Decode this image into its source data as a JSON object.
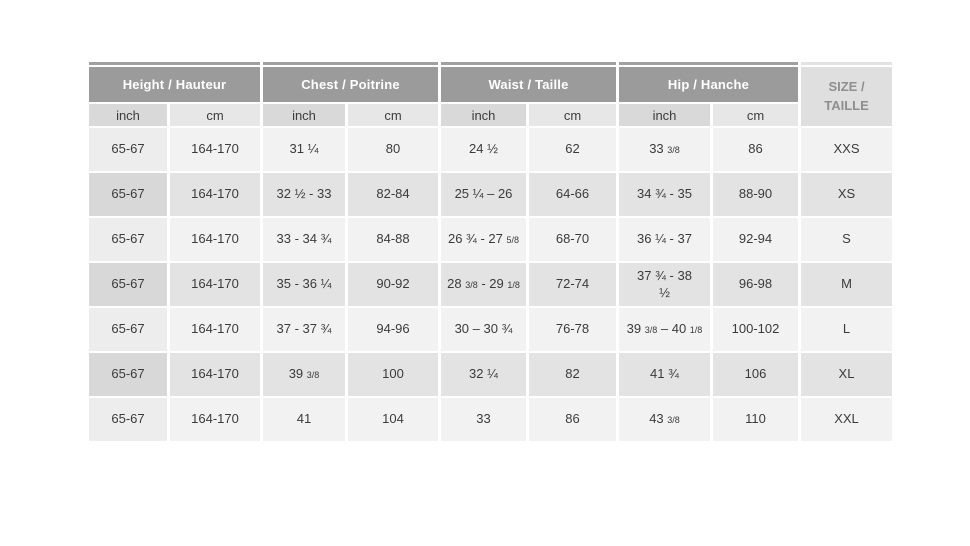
{
  "table": {
    "groups": [
      {
        "label": "Height / Hauteur",
        "sub": [
          "inch",
          "cm"
        ]
      },
      {
        "label": "Chest / Poitrine",
        "sub": [
          "inch",
          "cm"
        ]
      },
      {
        "label": "Waist / Taille",
        "sub": [
          "inch",
          "cm"
        ]
      },
      {
        "label": "Hip / Hanche",
        "sub": [
          "inch",
          "cm"
        ]
      }
    ],
    "size_header": {
      "line1": "SIZE /",
      "line2": "TAILLE"
    },
    "rows": [
      {
        "cells": [
          "65-67",
          "164-170",
          "31 ¼",
          "80",
          "24 ½",
          "62",
          "33 3/8",
          "86"
        ],
        "size": "XXS"
      },
      {
        "cells": [
          "65-67",
          "164-170",
          "32 ½ - 33",
          "82-84",
          "25 ¼ – 26",
          "64-66",
          "34 ¾ - 35",
          "88-90"
        ],
        "size": "XS"
      },
      {
        "cells": [
          "65-67",
          "164-170",
          "33 - 34 ¾",
          "84-88",
          "26 ¾ - 27 5/8",
          "68-70",
          "36 ¼ - 37",
          "92-94"
        ],
        "size": "S"
      },
      {
        "cells": [
          "65-67",
          "164-170",
          "35 - 36 ¼",
          "90-92",
          "28 3/8 - 29 1/8",
          "72-74",
          "37 ¾ - 38\n½",
          "96-98"
        ],
        "size": "M"
      },
      {
        "cells": [
          "65-67",
          "164-170",
          "37 - 37 ¾",
          "94-96",
          "30 – 30 ¾",
          "76-78",
          "39 3/8 – 40 1/8",
          "100-102"
        ],
        "size": "L"
      },
      {
        "cells": [
          "65-67",
          "164-170",
          "39 3/8",
          "100",
          "32 ¼",
          "82",
          "41 ¾",
          "106"
        ],
        "size": "XL"
      },
      {
        "cells": [
          "65-67",
          "164-170",
          "41",
          "104",
          "33",
          "86",
          "43 3/8",
          "110"
        ],
        "size": "XXL"
      }
    ],
    "colors": {
      "header_bg": "#9b9b9b",
      "header_text": "#ffffff",
      "size_header_bg": "#dfdfdf",
      "size_header_text": "#8f8f8f",
      "subheader_inch_bg": "#d9d9d9",
      "subheader_cm_bg": "#e7e7e7",
      "row_light_bg": "#f2f2f2",
      "row_light_first_bg": "#ededed",
      "row_gray_bg": "#e3e3e3",
      "row_gray_first_bg": "#d8d8d8",
      "data_text": "#3b3b3b"
    }
  },
  "chart_data": {
    "type": "table",
    "title": "Size chart (women) — Height / Chest / Waist / Hip with sizes XXS–XXL",
    "columns": [
      "Height inch",
      "Height cm",
      "Chest inch",
      "Chest cm",
      "Waist inch",
      "Waist cm",
      "Hip inch",
      "Hip cm",
      "Size / Taille"
    ],
    "rows": [
      [
        "65-67",
        "164-170",
        "31 ¼",
        "80",
        "24 ½",
        "62",
        "33 3/8",
        "86",
        "XXS"
      ],
      [
        "65-67",
        "164-170",
        "32 ½ - 33",
        "82-84",
        "25 ¼ – 26",
        "64-66",
        "34 ¾ - 35",
        "88-90",
        "XS"
      ],
      [
        "65-67",
        "164-170",
        "33 - 34 ¾",
        "84-88",
        "26 ¾ - 27 5/8",
        "68-70",
        "36 ¼ - 37",
        "92-94",
        "S"
      ],
      [
        "65-67",
        "164-170",
        "35 - 36 ¼",
        "90-92",
        "28 3/8 - 29 1/8",
        "72-74",
        "37 ¾ - 38 ½",
        "96-98",
        "M"
      ],
      [
        "65-67",
        "164-170",
        "37 - 37 ¾",
        "94-96",
        "30 – 30 ¾",
        "76-78",
        "39 3/8 – 40 1/8",
        "100-102",
        "L"
      ],
      [
        "65-67",
        "164-170",
        "39 3/8",
        "100",
        "32 ¼",
        "82",
        "41 ¾",
        "106",
        "XL"
      ],
      [
        "65-67",
        "164-170",
        "41",
        "104",
        "33",
        "86",
        "43 3/8",
        "110",
        "XXL"
      ]
    ],
    "legend_position": "none",
    "grid": false
  }
}
